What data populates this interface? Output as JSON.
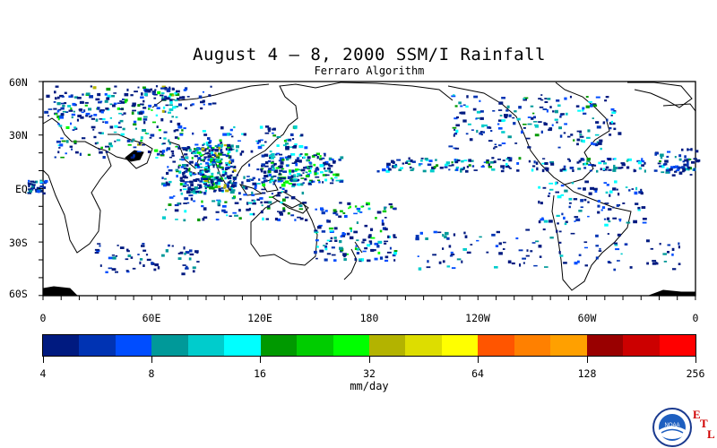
{
  "title": "August 4 – 8, 2000 SSM/I Rainfall",
  "subtitle": "Ferraro Algorithm",
  "map": {
    "lat_labels": [
      "60N",
      "30N",
      "EQ",
      "30S",
      "60S"
    ],
    "lon_labels": [
      "0",
      "60E",
      "120E",
      "180",
      "120W",
      "60W",
      "0"
    ]
  },
  "colorbar": {
    "unit_label": "mm/day",
    "tick_labels": [
      "4",
      "8",
      "16",
      "32",
      "64",
      "128",
      "256"
    ],
    "colors": [
      "#001a80",
      "#0033b3",
      "#004dff",
      "#009999",
      "#00cccc",
      "#00ffff",
      "#009900",
      "#00cc00",
      "#00ff00",
      "#b3b300",
      "#dddd00",
      "#ffff00",
      "#ff5500",
      "#ff8000",
      "#ffa000",
      "#990000",
      "#cc0000",
      "#ff0000"
    ]
  },
  "logo": {
    "emblem_text": "NOAA",
    "letters": [
      "E",
      "T",
      "L"
    ]
  }
}
